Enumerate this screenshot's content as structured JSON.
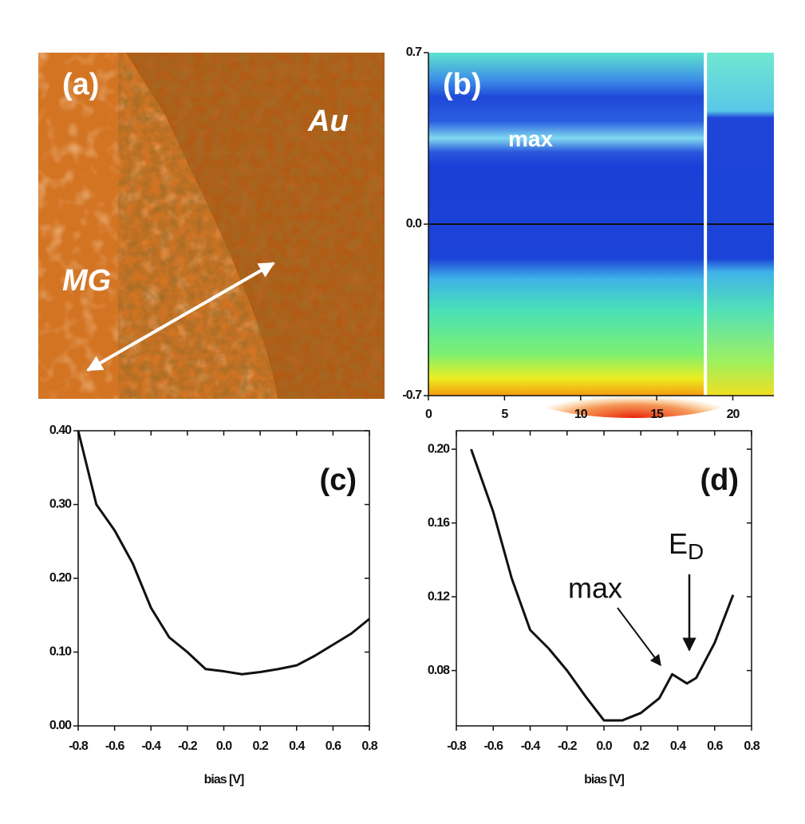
{
  "chart_data": [
    {
      "type": "image",
      "label": "(a)",
      "annotations": [
        "Au",
        "MG"
      ]
    },
    {
      "type": "heatmap",
      "label": "(b)",
      "annotation": "max",
      "xlim": [
        0,
        22.7
      ],
      "xticks": [
        0,
        5,
        10,
        15,
        20
      ],
      "ylim": [
        -0.7,
        0.7
      ],
      "yticks": [
        -0.7,
        {
          "value": 0,
          "label": "0.0"
        },
        0.7
      ],
      "vline": 18.2,
      "hline": 0
    },
    {
      "type": "line",
      "label": "(c)",
      "xlabel": "bias [V]",
      "x": [
        -0.8,
        -0.7,
        -0.6,
        -0.5,
        -0.4,
        -0.3,
        -0.2,
        -0.1,
        0.0,
        0.1,
        0.2,
        0.3,
        0.4,
        0.5,
        0.6,
        0.7,
        0.8
      ],
      "values": [
        0.4,
        0.3,
        0.265,
        0.22,
        0.16,
        0.12,
        0.1,
        0.077,
        0.074,
        0.07,
        0.073,
        0.077,
        0.082,
        0.095,
        0.11,
        0.125,
        0.145
      ],
      "xlim": [
        -0.8,
        0.8
      ],
      "xticks": [
        -0.8,
        -0.6,
        -0.4,
        -0.2,
        {
          "value": 0,
          "label": "0.0"
        },
        0.2,
        0.4,
        0.6,
        0.8
      ],
      "ylim": [
        0,
        0.4
      ],
      "yticks": [
        {
          "value": 0,
          "label": "0.00"
        },
        {
          "value": 0.1,
          "label": "0.10"
        },
        {
          "value": 0.2,
          "label": "0.20"
        },
        {
          "value": 0.3,
          "label": "0.30"
        },
        {
          "value": 0.4,
          "label": "0.40"
        }
      ]
    },
    {
      "type": "line",
      "label": "(d)",
      "xlabel": "bias [V]",
      "x": [
        -0.72,
        -0.6,
        -0.5,
        -0.4,
        -0.3,
        -0.2,
        -0.1,
        0.0,
        0.1,
        0.2,
        0.3,
        0.37,
        0.45,
        0.5,
        0.6,
        0.7
      ],
      "values": [
        0.2,
        0.166,
        0.13,
        0.102,
        0.092,
        0.08,
        0.066,
        0.053,
        0.053,
        0.057,
        0.065,
        0.078,
        0.073,
        0.076,
        0.095,
        0.121
      ],
      "xlim": [
        -0.8,
        0.8
      ],
      "xticks": [
        -0.8,
        -0.6,
        -0.4,
        -0.2,
        {
          "value": 0,
          "label": "0.0"
        },
        0.2,
        0.4,
        0.6,
        0.8
      ],
      "ylim": [
        0.05,
        0.21
      ],
      "yticks": [
        {
          "value": 0.08,
          "label": "0.08"
        },
        {
          "value": 0.12,
          "label": "0.12"
        },
        {
          "value": 0.16,
          "label": "0.16"
        },
        {
          "value": 0.2,
          "label": "0.20"
        }
      ],
      "annotations": [
        {
          "text": "max"
        },
        {
          "text": "E",
          "subscript": "D"
        }
      ]
    }
  ]
}
